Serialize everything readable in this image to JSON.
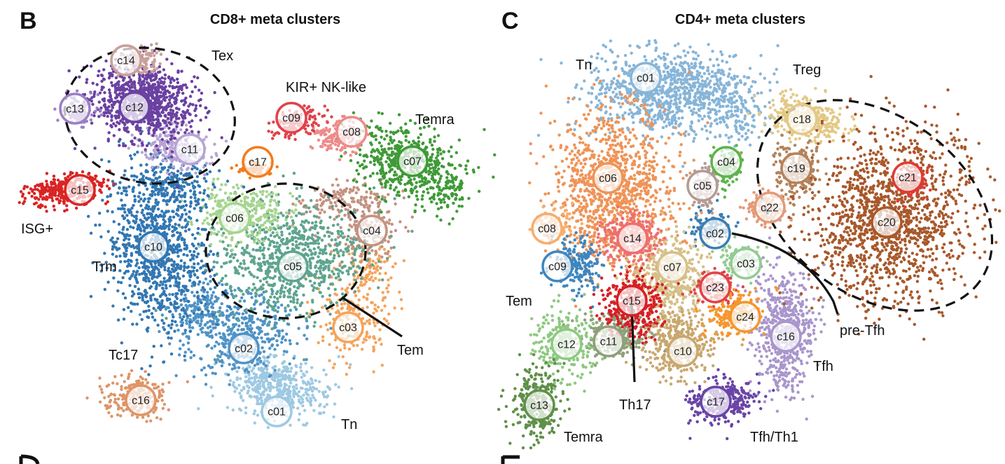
{
  "chart_data": [
    {
      "type": "scatter",
      "panel": "B",
      "title": "CD8+ meta clusters",
      "xlabel": "",
      "ylabel": "",
      "clusters": [
        {
          "id": "c01",
          "color": "#9ec9e2"
        },
        {
          "id": "c02",
          "color": "#4f93c6"
        },
        {
          "id": "c03",
          "color": "#f5a45c"
        },
        {
          "id": "c04",
          "color": "#c49280"
        },
        {
          "id": "c05",
          "color": "#5fa58f"
        },
        {
          "id": "c06",
          "color": "#a5d58f"
        },
        {
          "id": "c07",
          "color": "#3f9a37"
        },
        {
          "id": "c08",
          "color": "#ee8a8a"
        },
        {
          "id": "c09",
          "color": "#e0424a"
        },
        {
          "id": "c10",
          "color": "#3277b2"
        },
        {
          "id": "c11",
          "color": "#b8a4d4"
        },
        {
          "id": "c12",
          "color": "#6a41a1"
        },
        {
          "id": "c13",
          "color": "#9b7fc5"
        },
        {
          "id": "c14",
          "color": "#c99f9a"
        },
        {
          "id": "c15",
          "color": "#d92424"
        },
        {
          "id": "c16",
          "color": "#dd9568"
        },
        {
          "id": "c17",
          "color": "#f27c1f"
        }
      ],
      "annotations": [
        "Tex",
        "KIR+ NK-like",
        "Temra",
        "ISG+",
        "Trm",
        "Tem",
        "Tc17",
        "Tn"
      ]
    },
    {
      "type": "scatter",
      "panel": "C",
      "title": "CD4+ meta clusters",
      "xlabel": "",
      "ylabel": "",
      "clusters": [
        {
          "id": "c01",
          "color": "#87b5d8"
        },
        {
          "id": "c02",
          "color": "#3a7db3"
        },
        {
          "id": "c03",
          "color": "#92cc92"
        },
        {
          "id": "c04",
          "color": "#5cb44c"
        },
        {
          "id": "c05",
          "color": "#b49a92"
        },
        {
          "id": "c06",
          "color": "#ee9458"
        },
        {
          "id": "c07",
          "color": "#d6c088"
        },
        {
          "id": "c08",
          "color": "#f6ae6c"
        },
        {
          "id": "c09",
          "color": "#3e86bf"
        },
        {
          "id": "c10",
          "color": "#c8a76e"
        },
        {
          "id": "c11",
          "color": "#8fa078"
        },
        {
          "id": "c12",
          "color": "#8dc980"
        },
        {
          "id": "c13",
          "color": "#5f9048"
        },
        {
          "id": "c14",
          "color": "#ee6e6e"
        },
        {
          "id": "c15",
          "color": "#d81e26"
        },
        {
          "id": "c16",
          "color": "#a996cc"
        },
        {
          "id": "c17",
          "color": "#6a44a6"
        },
        {
          "id": "c18",
          "color": "#e3c885"
        },
        {
          "id": "c19",
          "color": "#b4825a"
        },
        {
          "id": "c20",
          "color": "#a8582a"
        },
        {
          "id": "c21",
          "color": "#e03a34"
        },
        {
          "id": "c22",
          "color": "#e39a78"
        },
        {
          "id": "c23",
          "color": "#e0424a"
        },
        {
          "id": "c24",
          "color": "#f5962e"
        }
      ],
      "annotations": [
        "Tn",
        "Treg",
        "Tem",
        "pre-Tfh",
        "Tfh",
        "Th17",
        "Temra",
        "Tfh/Th1"
      ]
    }
  ]
}
